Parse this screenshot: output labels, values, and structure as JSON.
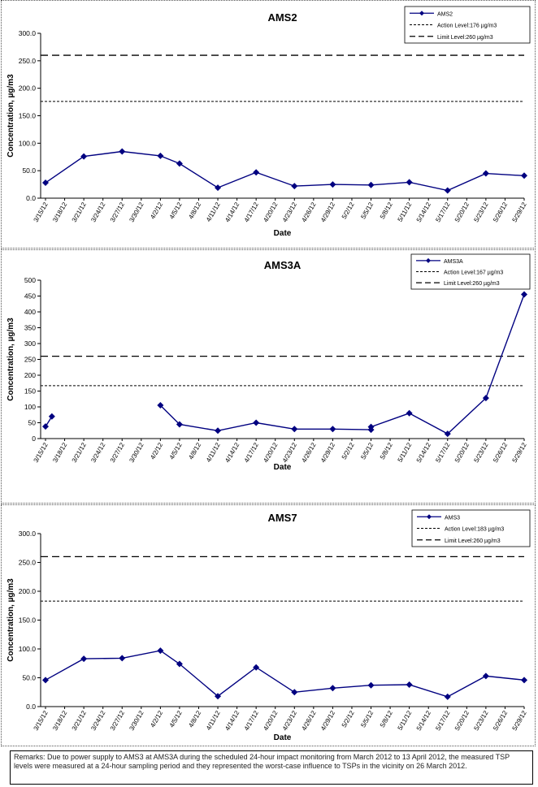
{
  "charts": [
    {
      "title": "AMS2",
      "ylabel": "Concentration, µg/m3",
      "xlabel": "Date",
      "ylim": [
        0,
        300
      ],
      "ystep": 50,
      "ydecimals": 1,
      "legend": {
        "series": "AMS2",
        "action": "Action Level:176 µg/m3",
        "limit": "Limit Level:260 µg/m3"
      }
    },
    {
      "title": "AMS3A",
      "ylabel": "Concentration, µg/m3",
      "xlabel": "Date",
      "ylim": [
        0,
        500
      ],
      "ystep": 50,
      "ydecimals": 0,
      "legend": {
        "series": "AMS3A",
        "action": "Action Level:167 µg/m3",
        "limit": "Limit Level:260 µg/m3"
      }
    },
    {
      "title": "AMS7",
      "ylabel": "Concentration, µg/m3",
      "xlabel": "Date",
      "ylim": [
        0,
        300
      ],
      "ystep": 50,
      "ydecimals": 1,
      "legend": {
        "series": "AMS3",
        "action": "Action Level:183 µg/m3",
        "limit": "Limit Level:260 µg/m3"
      }
    }
  ],
  "chart_data": [
    {
      "type": "line",
      "title": "AMS2",
      "x_ticks": [
        "3/15/12",
        "3/18/12",
        "3/21/12",
        "3/24/12",
        "3/27/12",
        "3/30/12",
        "4/2/12",
        "4/5/12",
        "4/8/12",
        "4/11/12",
        "4/14/12",
        "4/17/12",
        "4/20/12",
        "4/23/12",
        "4/26/12",
        "4/29/12",
        "5/2/12",
        "5/5/12",
        "5/8/12",
        "5/11/12",
        "5/14/12",
        "5/17/12",
        "5/20/12",
        "5/23/12",
        "5/26/12",
        "5/29/12"
      ],
      "series": [
        {
          "name": "AMS2",
          "color": "#000080",
          "x": [
            "3/15/12",
            "3/21/12",
            "3/27/12",
            "4/2/12",
            "4/5/12",
            "4/11/12",
            "4/17/12",
            "4/23/12",
            "4/29/12",
            "5/5/12",
            "5/11/12",
            "5/17/12",
            "5/23/12",
            "5/29/12"
          ],
          "y": [
            28,
            76,
            85,
            77,
            63,
            19,
            47,
            22,
            25,
            24,
            29,
            14,
            45,
            41
          ]
        }
      ],
      "action_level": 176,
      "limit_level": 260,
      "ylim": [
        0,
        300
      ]
    },
    {
      "type": "line",
      "title": "AMS3A",
      "x_ticks": [
        "3/15/12",
        "3/18/12",
        "3/21/12",
        "3/24/12",
        "3/27/12",
        "3/30/12",
        "4/2/12",
        "4/5/12",
        "4/8/12",
        "4/11/12",
        "4/14/12",
        "4/17/12",
        "4/20/12",
        "4/23/12",
        "4/26/12",
        "4/29/12",
        "5/2/12",
        "5/5/12",
        "5/8/12",
        "5/11/12",
        "5/14/12",
        "5/17/12",
        "5/20/12",
        "5/23/12",
        "5/26/12",
        "5/29/12"
      ],
      "series": [
        {
          "name": "AMS3A",
          "color": "#000080",
          "x": [
            "3/15/12",
            "3/16/12",
            "4/2/12",
            "4/5/12",
            "4/11/12",
            "4/17/12",
            "4/23/12",
            "4/29/12",
            "5/5/12",
            "5/5/12",
            "5/11/12",
            "5/17/12",
            "5/23/12",
            "5/29/12"
          ],
          "y": [
            38,
            70,
            105,
            45,
            25,
            50,
            30,
            30,
            28,
            37,
            80,
            15,
            128,
            455
          ],
          "segments": [
            [
              0,
              1
            ],
            [
              2,
              13
            ]
          ]
        }
      ],
      "action_level": 167,
      "limit_level": 260,
      "ylim": [
        0,
        500
      ]
    },
    {
      "type": "line",
      "title": "AMS7",
      "x_ticks": [
        "3/15/12",
        "3/18/12",
        "3/21/12",
        "3/24/12",
        "3/27/12",
        "3/30/12",
        "4/2/12",
        "4/5/12",
        "4/8/12",
        "4/11/12",
        "4/14/12",
        "4/17/12",
        "4/20/12",
        "4/23/12",
        "4/26/12",
        "4/29/12",
        "5/2/12",
        "5/5/12",
        "5/8/12",
        "5/11/12",
        "5/14/12",
        "5/17/12",
        "5/20/12",
        "5/23/12",
        "5/26/12",
        "5/29/12"
      ],
      "series": [
        {
          "name": "AMS3",
          "color": "#000080",
          "x": [
            "3/15/12",
            "3/21/12",
            "3/27/12",
            "4/2/12",
            "4/5/12",
            "4/11/12",
            "4/17/12",
            "4/23/12",
            "4/29/12",
            "5/5/12",
            "5/11/12",
            "5/17/12",
            "5/23/12",
            "5/29/12"
          ],
          "y": [
            46,
            83,
            84,
            97,
            74,
            18,
            68,
            25,
            32,
            37,
            38,
            17,
            53,
            46
          ]
        }
      ],
      "action_level": 183,
      "limit_level": 260,
      "ylim": [
        0,
        300
      ]
    }
  ],
  "note": "Remarks: Due to power supply to AMS3 at AMS3A during the scheduled 24-hour impact monitoring from March 2012 to 13 April 2012, the measured TSP levels were measured at a 24-hour sampling period and they represented the worst-case influence to TSPs in the vicinity on 26 March 2012."
}
